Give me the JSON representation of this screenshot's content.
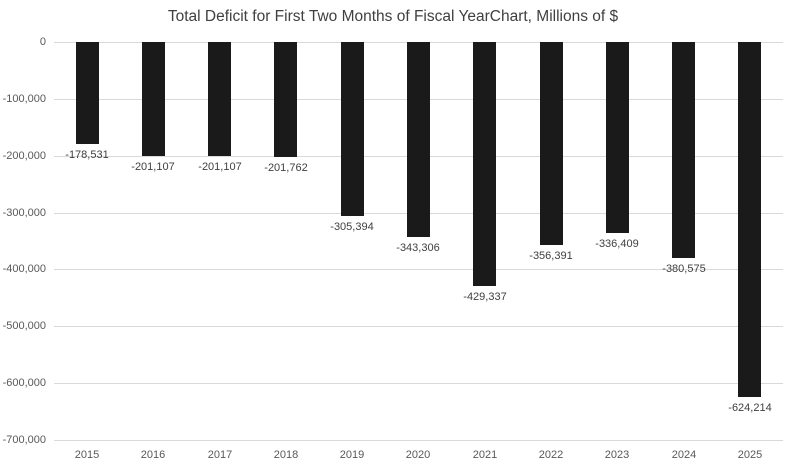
{
  "chart_data": {
    "type": "bar",
    "title": "Total Deficit for First Two Months of Fiscal YearChart, Millions of $",
    "categories": [
      "2015",
      "2016",
      "2017",
      "2018",
      "2019",
      "2020",
      "2021",
      "2022",
      "2023",
      "2024",
      "2025"
    ],
    "values": [
      -178531,
      -201107,
      -201107,
      -201762,
      -305394,
      -343306,
      -429337,
      -356391,
      -336409,
      -380575,
      -624214
    ],
    "value_labels": [
      "-178,531",
      "-201,107",
      "-201,107",
      "-201,762",
      "-305,394",
      "-343,306",
      "-429,337",
      "-356,391",
      "-336,409",
      "-380,575",
      "-624,214"
    ],
    "y_ticks": [
      0,
      -100000,
      -200000,
      -300000,
      -400000,
      -500000,
      -600000,
      -700000
    ],
    "y_tick_labels": [
      "0",
      "-100,000",
      "-200,000",
      "-300,000",
      "-400,000",
      "-500,000",
      "-600,000",
      "-700,000"
    ],
    "ylim": [
      -700000,
      0
    ],
    "xlabel": "",
    "ylabel": "",
    "grid": true,
    "legend": "none",
    "bar_color": "#1A1A1A",
    "gridline_color": "#D9D9D9",
    "title_color": "#404040",
    "axis_label_color": "#595959",
    "value_label_color": "#404040",
    "background_color": "#FFFFFF"
  }
}
